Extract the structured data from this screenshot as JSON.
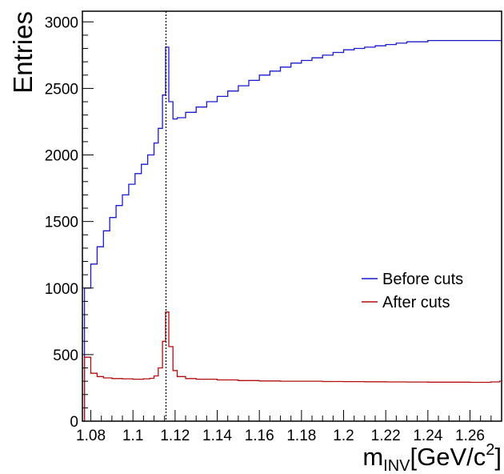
{
  "chart_data": {
    "type": "line",
    "style": "step-histogram",
    "xlabel_main": "m",
    "xlabel_sub": "INV",
    "xlabel_unit": "[GeV/c",
    "xlabel_sup": "2",
    "xlabel_close": "]",
    "ylabel": "Entries",
    "xlim": [
      1.076,
      1.275
    ],
    "ylim": [
      0,
      3080
    ],
    "x_ticks": [
      "1.08",
      "1.1",
      "1.12",
      "1.14",
      "1.16",
      "1.18",
      "1.2",
      "1.22",
      "1.24",
      "1.26"
    ],
    "y_ticks": [
      "0",
      "500",
      "1000",
      "1500",
      "2000",
      "2500",
      "3000"
    ],
    "grid": false,
    "legend_position": "center-right",
    "reference_line": {
      "x": 1.1157,
      "style": "dotted"
    },
    "series": [
      {
        "name": "Before cuts",
        "color": "#1a1acc",
        "points": [
          [
            1.077,
            1000
          ],
          [
            1.08,
            1180
          ],
          [
            1.083,
            1310
          ],
          [
            1.086,
            1430
          ],
          [
            1.089,
            1530
          ],
          [
            1.092,
            1620
          ],
          [
            1.095,
            1700
          ],
          [
            1.098,
            1780
          ],
          [
            1.101,
            1860
          ],
          [
            1.104,
            1930
          ],
          [
            1.107,
            2000
          ],
          [
            1.11,
            2090
          ],
          [
            1.112,
            2200
          ],
          [
            1.114,
            2450
          ],
          [
            1.1155,
            2810
          ],
          [
            1.117,
            2400
          ],
          [
            1.119,
            2270
          ],
          [
            1.121,
            2280
          ],
          [
            1.125,
            2320
          ],
          [
            1.13,
            2360
          ],
          [
            1.135,
            2400
          ],
          [
            1.14,
            2440
          ],
          [
            1.145,
            2480
          ],
          [
            1.15,
            2520
          ],
          [
            1.155,
            2560
          ],
          [
            1.16,
            2600
          ],
          [
            1.165,
            2630
          ],
          [
            1.17,
            2660
          ],
          [
            1.175,
            2690
          ],
          [
            1.18,
            2710
          ],
          [
            1.185,
            2730
          ],
          [
            1.19,
            2750
          ],
          [
            1.195,
            2770
          ],
          [
            1.2,
            2790
          ],
          [
            1.205,
            2800
          ],
          [
            1.21,
            2810
          ],
          [
            1.215,
            2820
          ],
          [
            1.22,
            2830
          ],
          [
            1.225,
            2840
          ],
          [
            1.23,
            2850
          ],
          [
            1.235,
            2850
          ],
          [
            1.24,
            2860
          ],
          [
            1.245,
            2860
          ],
          [
            1.25,
            2860
          ],
          [
            1.255,
            2860
          ],
          [
            1.26,
            2860
          ],
          [
            1.265,
            2860
          ],
          [
            1.27,
            2860
          ],
          [
            1.274,
            2860
          ]
        ]
      },
      {
        "name": "After cuts",
        "color": "#b30d0d",
        "points": [
          [
            1.077,
            480
          ],
          [
            1.08,
            360
          ],
          [
            1.083,
            335
          ],
          [
            1.086,
            325
          ],
          [
            1.09,
            320
          ],
          [
            1.095,
            318
          ],
          [
            1.1,
            315
          ],
          [
            1.105,
            318
          ],
          [
            1.108,
            322
          ],
          [
            1.11,
            340
          ],
          [
            1.112,
            400
          ],
          [
            1.114,
            600
          ],
          [
            1.1155,
            820
          ],
          [
            1.117,
            560
          ],
          [
            1.119,
            380
          ],
          [
            1.121,
            335
          ],
          [
            1.125,
            320
          ],
          [
            1.13,
            315
          ],
          [
            1.14,
            310
          ],
          [
            1.15,
            305
          ],
          [
            1.16,
            302
          ],
          [
            1.17,
            300
          ],
          [
            1.18,
            300
          ],
          [
            1.19,
            298
          ],
          [
            1.2,
            297
          ],
          [
            1.21,
            296
          ],
          [
            1.22,
            295
          ],
          [
            1.23,
            294
          ],
          [
            1.24,
            293
          ],
          [
            1.25,
            293
          ],
          [
            1.26,
            292
          ],
          [
            1.27,
            295
          ],
          [
            1.274,
            300
          ]
        ]
      }
    ]
  }
}
